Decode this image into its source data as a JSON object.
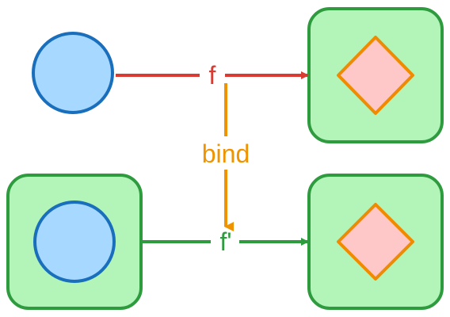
{
  "diagram": {
    "labels": {
      "f": "f",
      "bind": "bind",
      "f_prime": "f'"
    },
    "colors": {
      "circle_fill": "#a7d8ff",
      "circle_stroke": "#1a6fbd",
      "box_fill": "#b3f4b9",
      "box_stroke": "#2e9b3e",
      "diamond_fill": "#ffc8c8",
      "diamond_stroke": "#f08a00",
      "arrow_f": "#d93a32",
      "arrow_bind": "#ef9300",
      "arrow_f_prime": "#2e9b3e"
    }
  }
}
